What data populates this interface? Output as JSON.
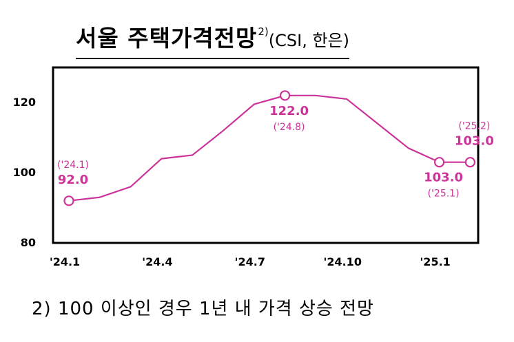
{
  "title": {
    "main": "서울 주택가격전망",
    "superscript": "2)",
    "subtitle": "(CSI, 한은)"
  },
  "note": "2) 100 이상인 경우 1년 내 가격 상승 전망",
  "colors": {
    "series": "#cc3399",
    "frame": "#000000"
  },
  "chart_data": {
    "type": "line",
    "x": [
      "24.1",
      "24.2",
      "24.3",
      "24.4",
      "24.5",
      "24.6",
      "24.7",
      "24.8",
      "24.9",
      "24.10",
      "24.11",
      "24.12",
      "25.1",
      "25.2"
    ],
    "series": [
      {
        "values": [
          92,
          93,
          96,
          104,
          105,
          112,
          119.5,
          122,
          122,
          121,
          114,
          107,
          103,
          103
        ]
      }
    ],
    "x_tick_labels": [
      "'24.1",
      "'24.4",
      "'24.7",
      "'24.10",
      "'25.1"
    ],
    "x_tick_index": [
      0,
      3,
      6,
      9,
      12
    ],
    "y_ticks": [
      80,
      100,
      120
    ],
    "ylim": [
      80,
      130
    ],
    "grid": false,
    "annotations": [
      {
        "index": 0,
        "value_label": "92.0",
        "period_label": "('24.1)",
        "placement": "above"
      },
      {
        "index": 7,
        "value_label": "122.0",
        "period_label": "('24.8)",
        "placement": "below"
      },
      {
        "index": 12,
        "value_label": "103.0",
        "period_label": "('25.1)",
        "placement": "below"
      },
      {
        "index": 13,
        "value_label": "103.0",
        "period_label": "('25.2)",
        "placement": "above"
      }
    ]
  }
}
